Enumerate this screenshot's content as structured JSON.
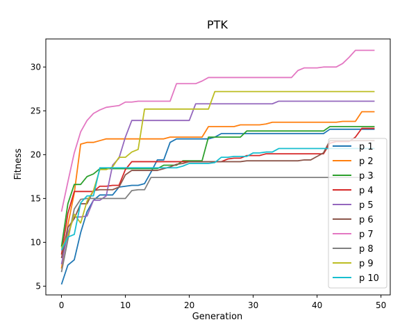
{
  "chart_data": {
    "type": "line",
    "title": "PTK",
    "xlabel": "Generation",
    "ylabel": "Fitness",
    "xlim": [
      -2.45,
      51.45
    ],
    "ylim": [
      4.0,
      33.2
    ],
    "xticks": [
      0,
      10,
      20,
      30,
      40,
      50
    ],
    "yticks": [
      5,
      10,
      15,
      20,
      25,
      30
    ],
    "grid": false,
    "legend_position": "lower-right",
    "series": [
      {
        "name": "p 1",
        "color": "#1f77b4",
        "x": [
          0,
          1,
          2,
          3,
          4,
          5,
          6,
          7,
          8,
          9,
          10,
          11,
          12,
          13,
          14,
          15,
          16,
          17,
          18,
          19,
          20,
          21,
          22,
          23,
          24,
          25,
          26,
          27,
          28,
          29,
          30,
          31,
          32,
          33,
          34,
          35,
          36,
          37,
          38,
          39,
          40,
          41,
          42,
          43,
          44,
          45,
          46,
          47,
          48,
          49
        ],
        "values": [
          5.2,
          7.4,
          8.0,
          11.1,
          13.5,
          14.8,
          15.4,
          15.4,
          15.4,
          16.3,
          16.4,
          16.5,
          16.5,
          16.7,
          18.0,
          19.4,
          19.4,
          21.4,
          21.8,
          21.8,
          21.8,
          21.8,
          21.8,
          21.8,
          22.0,
          22.4,
          22.4,
          22.4,
          22.4,
          22.4,
          22.4,
          22.4,
          22.4,
          22.4,
          22.4,
          22.4,
          22.4,
          22.4,
          22.4,
          22.4,
          22.4,
          22.4,
          22.9,
          22.9,
          22.9,
          22.9,
          22.9,
          22.9,
          22.9,
          22.9
        ]
      },
      {
        "name": "p 2",
        "color": "#ff7f0e",
        "x": [
          0,
          1,
          2,
          3,
          4,
          5,
          6,
          7,
          8,
          9,
          10,
          11,
          12,
          13,
          14,
          15,
          16,
          17,
          18,
          19,
          20,
          21,
          22,
          23,
          24,
          25,
          26,
          27,
          28,
          29,
          30,
          31,
          32,
          33,
          34,
          35,
          36,
          37,
          38,
          39,
          40,
          41,
          42,
          43,
          44,
          45,
          46,
          47,
          48,
          49
        ],
        "values": [
          7.0,
          12.0,
          15.6,
          21.2,
          21.4,
          21.4,
          21.6,
          21.8,
          21.8,
          21.8,
          21.8,
          21.8,
          21.8,
          21.8,
          21.8,
          21.8,
          21.8,
          22.0,
          22.0,
          22.0,
          22.0,
          22.0,
          22.0,
          23.2,
          23.2,
          23.2,
          23.2,
          23.2,
          23.4,
          23.4,
          23.4,
          23.4,
          23.5,
          23.7,
          23.7,
          23.7,
          23.7,
          23.7,
          23.7,
          23.7,
          23.7,
          23.7,
          23.7,
          23.7,
          23.8,
          23.8,
          23.8,
          24.9,
          24.9,
          24.9
        ]
      },
      {
        "name": "p 3",
        "color": "#2ca02c",
        "x": [
          0,
          1,
          2,
          3,
          4,
          5,
          6,
          7,
          8,
          9,
          10,
          11,
          12,
          13,
          14,
          15,
          16,
          17,
          18,
          19,
          20,
          21,
          22,
          23,
          24,
          25,
          26,
          27,
          28,
          29,
          30,
          31,
          32,
          33,
          34,
          35,
          36,
          37,
          38,
          39,
          40,
          41,
          42,
          43,
          44,
          45,
          46,
          47,
          48,
          49
        ],
        "values": [
          9.5,
          14.4,
          16.6,
          16.6,
          17.5,
          17.8,
          18.4,
          18.4,
          18.4,
          18.4,
          18.4,
          18.4,
          18.4,
          18.4,
          18.4,
          18.4,
          18.8,
          18.8,
          18.8,
          19.3,
          19.3,
          19.3,
          19.3,
          22.0,
          22.0,
          22.0,
          22.0,
          22.0,
          22.0,
          22.7,
          22.7,
          22.7,
          22.7,
          22.7,
          22.7,
          22.7,
          22.7,
          22.7,
          22.7,
          22.7,
          22.7,
          22.7,
          23.2,
          23.2,
          23.2,
          23.2,
          23.2,
          23.2,
          23.2,
          23.2
        ]
      },
      {
        "name": "p 4",
        "color": "#d62728",
        "x": [
          0,
          1,
          2,
          3,
          4,
          5,
          6,
          7,
          8,
          9,
          10,
          11,
          12,
          13,
          14,
          15,
          16,
          17,
          18,
          19,
          20,
          21,
          22,
          23,
          24,
          25,
          26,
          27,
          28,
          29,
          30,
          31,
          32,
          33,
          34,
          35,
          36,
          37,
          38,
          39,
          40,
          41,
          42,
          43,
          44,
          45,
          46,
          47,
          48,
          49
        ],
        "values": [
          8.6,
          13.3,
          15.8,
          15.8,
          15.8,
          15.8,
          16.4,
          16.4,
          16.5,
          16.5,
          18.3,
          19.2,
          19.2,
          19.2,
          19.2,
          19.2,
          19.2,
          19.2,
          19.2,
          19.2,
          19.2,
          19.2,
          19.2,
          19.2,
          19.2,
          19.2,
          19.5,
          19.6,
          19.6,
          19.9,
          19.9,
          19.9,
          20.1,
          20.1,
          20.1,
          20.1,
          20.1,
          20.1,
          20.1,
          20.1,
          20.1,
          20.1,
          21.3,
          21.5,
          21.5,
          21.5,
          22.0,
          23.0,
          23.0,
          23.0
        ]
      },
      {
        "name": "p 5",
        "color": "#9467bd",
        "x": [
          0,
          1,
          2,
          3,
          4,
          5,
          6,
          7,
          8,
          9,
          10,
          11,
          12,
          13,
          14,
          15,
          16,
          17,
          18,
          19,
          20,
          21,
          22,
          23,
          24,
          25,
          26,
          27,
          28,
          29,
          30,
          31,
          32,
          33,
          34,
          35,
          36,
          37,
          38,
          39,
          40,
          41,
          42,
          43,
          44,
          45,
          46,
          47,
          48,
          49
        ],
        "values": [
          7.5,
          11.1,
          12.9,
          12.9,
          13.0,
          14.8,
          14.8,
          15.3,
          18.8,
          19.6,
          22.0,
          23.9,
          23.9,
          23.9,
          23.9,
          23.9,
          23.9,
          23.9,
          23.9,
          23.9,
          23.9,
          25.8,
          25.8,
          25.8,
          25.8,
          25.8,
          25.8,
          25.8,
          25.8,
          25.8,
          25.8,
          25.8,
          25.8,
          25.8,
          26.1,
          26.1,
          26.1,
          26.1,
          26.1,
          26.1,
          26.1,
          26.1,
          26.1,
          26.1,
          26.1,
          26.1,
          26.1,
          26.1,
          26.1,
          26.1
        ]
      },
      {
        "name": "p 6",
        "color": "#8c564b",
        "x": [
          0,
          1,
          2,
          3,
          4,
          5,
          6,
          7,
          8,
          9,
          10,
          11,
          12,
          13,
          14,
          15,
          16,
          17,
          18,
          19,
          20,
          21,
          22,
          23,
          24,
          25,
          26,
          27,
          28,
          29,
          30,
          31,
          32,
          33,
          34,
          35,
          36,
          37,
          38,
          39,
          40,
          41,
          42,
          43,
          44,
          45,
          46,
          47,
          48,
          49
        ],
        "values": [
          8.2,
          11.7,
          12.7,
          14.4,
          14.4,
          15.9,
          16.0,
          16.0,
          16.0,
          16.3,
          17.7,
          18.2,
          18.2,
          18.2,
          18.2,
          18.2,
          18.4,
          18.6,
          18.9,
          19.0,
          19.2,
          19.2,
          19.2,
          19.2,
          19.2,
          19.2,
          19.2,
          19.2,
          19.2,
          19.3,
          19.3,
          19.3,
          19.3,
          19.3,
          19.3,
          19.3,
          19.3,
          19.3,
          19.4,
          19.4,
          19.8,
          20.2,
          21.6,
          21.6,
          21.6,
          21.6,
          21.6,
          21.6,
          21.6,
          21.6
        ]
      },
      {
        "name": "p 7",
        "color": "#e377c2",
        "x": [
          0,
          1,
          2,
          3,
          4,
          5,
          6,
          7,
          8,
          9,
          10,
          11,
          12,
          13,
          14,
          15,
          16,
          17,
          18,
          19,
          20,
          21,
          22,
          23,
          24,
          25,
          26,
          27,
          28,
          29,
          30,
          31,
          32,
          33,
          34,
          35,
          36,
          37,
          38,
          39,
          40,
          41,
          42,
          43,
          44,
          45,
          46,
          47,
          48,
          49
        ],
        "values": [
          13.5,
          16.9,
          20.2,
          22.6,
          23.9,
          24.7,
          25.1,
          25.4,
          25.5,
          25.6,
          26.0,
          26.0,
          26.1,
          26.1,
          26.1,
          26.1,
          26.1,
          26.1,
          28.1,
          28.1,
          28.1,
          28.1,
          28.4,
          28.8,
          28.8,
          28.8,
          28.8,
          28.8,
          28.8,
          28.8,
          28.8,
          28.8,
          28.8,
          28.8,
          28.8,
          28.8,
          28.8,
          29.6,
          29.9,
          29.9,
          29.9,
          30.0,
          30.0,
          30.0,
          30.4,
          31.1,
          31.9,
          31.9,
          31.9,
          31.9
        ]
      },
      {
        "name": "p 8",
        "color": "#7f7f7f",
        "x": [
          0,
          1,
          2,
          3,
          4,
          5,
          6,
          7,
          8,
          9,
          10,
          11,
          12,
          13,
          14,
          15,
          16,
          17,
          18,
          19,
          20,
          21,
          22,
          23,
          24,
          25,
          26,
          27,
          28,
          29,
          30,
          31,
          32,
          33,
          34,
          35,
          36,
          37,
          38,
          39,
          40,
          41,
          42,
          43,
          44,
          45,
          46,
          47,
          48,
          49
        ],
        "values": [
          6.6,
          10.3,
          13.8,
          14.9,
          15.0,
          15.0,
          15.0,
          15.0,
          15.0,
          15.0,
          15.0,
          15.9,
          16.0,
          16.0,
          17.4,
          17.4,
          17.4,
          17.4,
          17.4,
          17.4,
          17.4,
          17.4,
          17.4,
          17.4,
          17.4,
          17.4,
          17.4,
          17.4,
          17.4,
          17.4,
          17.4,
          17.4,
          17.4,
          17.4,
          17.4,
          17.4,
          17.4,
          17.4,
          17.4,
          17.4,
          17.4,
          17.4,
          17.4,
          17.4,
          17.4,
          17.4,
          17.4,
          17.4,
          17.4,
          17.4
        ]
      },
      {
        "name": "p 9",
        "color": "#bcbd22",
        "x": [
          0,
          1,
          2,
          3,
          4,
          5,
          6,
          7,
          8,
          9,
          10,
          11,
          12,
          13,
          14,
          15,
          16,
          17,
          18,
          19,
          20,
          21,
          22,
          23,
          24,
          25,
          26,
          27,
          28,
          29,
          30,
          31,
          32,
          33,
          34,
          35,
          36,
          37,
          38,
          39,
          40,
          41,
          42,
          43,
          44,
          45,
          46,
          47,
          48,
          49
        ],
        "values": [
          9.3,
          10.7,
          13.2,
          12.2,
          14.7,
          15.9,
          18.3,
          18.3,
          18.6,
          19.7,
          19.7,
          20.3,
          20.6,
          25.2,
          25.2,
          25.2,
          25.2,
          25.2,
          25.2,
          25.2,
          25.2,
          25.2,
          25.2,
          25.2,
          27.2,
          27.2,
          27.2,
          27.2,
          27.2,
          27.2,
          27.2,
          27.2,
          27.2,
          27.2,
          27.2,
          27.2,
          27.2,
          27.2,
          27.2,
          27.2,
          27.2,
          27.2,
          27.2,
          27.2,
          27.2,
          27.2,
          27.2,
          27.2,
          27.2,
          27.2
        ]
      },
      {
        "name": "p 10",
        "color": "#17becf",
        "x": [
          0,
          1,
          2,
          3,
          4,
          5,
          6,
          7,
          8,
          9,
          10,
          11,
          12,
          13,
          14,
          15,
          16,
          17,
          18,
          19,
          20,
          21,
          22,
          23,
          24,
          25,
          26,
          27,
          28,
          29,
          30,
          31,
          32,
          33,
          34,
          35,
          36,
          37,
          38,
          39,
          40,
          41,
          42,
          43,
          44,
          45,
          46,
          47,
          48,
          49
        ],
        "values": [
          9.1,
          10.6,
          10.9,
          14.5,
          15.3,
          15.3,
          18.5,
          18.5,
          18.5,
          18.5,
          18.5,
          18.5,
          18.5,
          18.5,
          18.5,
          18.5,
          18.5,
          18.5,
          18.5,
          18.7,
          19.0,
          19.0,
          19.0,
          19.0,
          19.1,
          19.7,
          19.7,
          19.8,
          19.8,
          19.8,
          20.2,
          20.2,
          20.3,
          20.3,
          20.7,
          20.7,
          20.7,
          20.7,
          20.7,
          20.7,
          20.7,
          20.7,
          20.7,
          20.7,
          20.7,
          20.7,
          20.7,
          20.7,
          20.7,
          20.7
        ]
      }
    ]
  }
}
